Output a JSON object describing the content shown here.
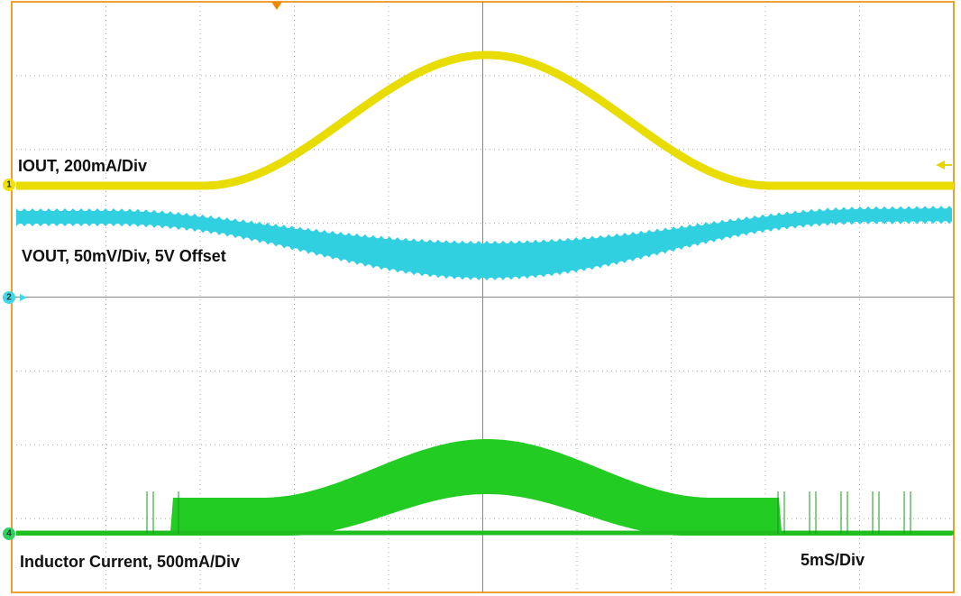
{
  "labels": {
    "iout": "IOUT, 200mA/Div",
    "vout": "VOUT, 50mV/Div, 5V Offset",
    "inductor": "Inductor  Current, 500mA/Div",
    "timebase": "5mS/Div"
  },
  "markers": {
    "ch1": "1",
    "ch2": "2",
    "ch4": "4"
  }
}
